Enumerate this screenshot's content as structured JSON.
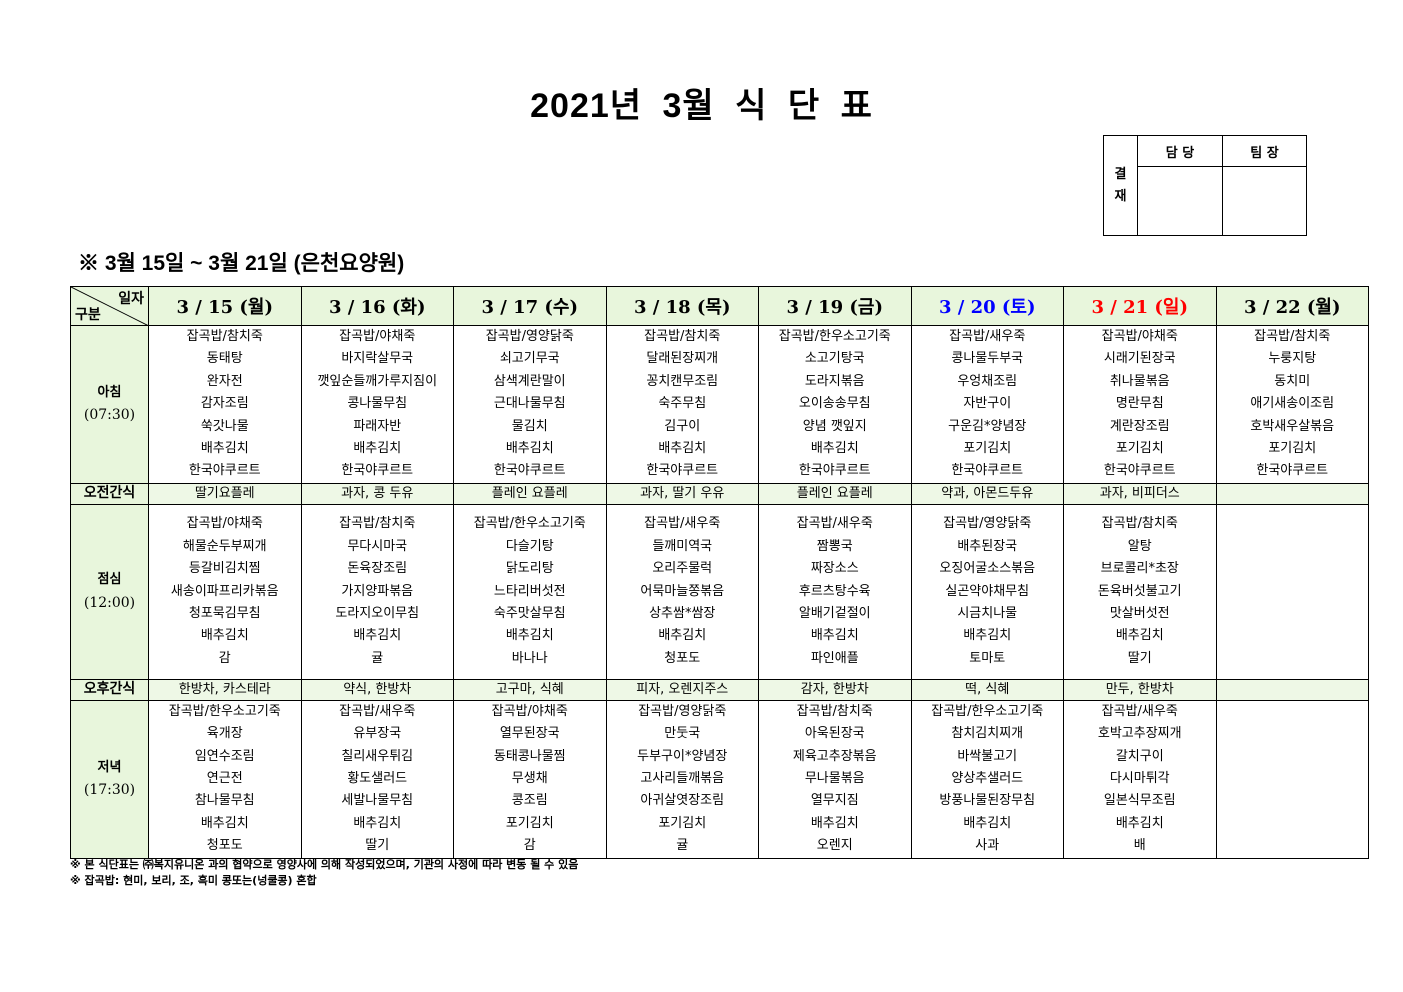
{
  "title": "2021년 3월 식 단 표",
  "approval": {
    "label": "결\n재",
    "col1": "담 당",
    "col2": "팀 장"
  },
  "subtitle": "※ 3월 15일 ~ 3월 21일 (은천요양원)",
  "corner": {
    "top": "일자",
    "bottom": "구분"
  },
  "row_labels": {
    "breakfast": "아침",
    "breakfast_time": "(07:30)",
    "morning_snack": "오전간식",
    "lunch": "점심",
    "lunch_time": "(12:00)",
    "afternoon_snack": "오후간식",
    "dinner": "저녁",
    "dinner_time": "(17:30)"
  },
  "colors": {
    "header_bg": "#e8f6dc",
    "saturday": "#0000ff",
    "sunday": "#ff0000"
  },
  "days": [
    {
      "date": "3 / 15 (월)",
      "color": "#000000",
      "breakfast": [
        "잡곡밥/참치죽",
        "동태탕",
        "완자전",
        "감자조림",
        "쑥갓나물",
        "배추김치",
        "한국야쿠르트"
      ],
      "morning_snack": "딸기요플레",
      "lunch": [
        "잡곡밥/야채죽",
        "해물순두부찌개",
        "등갈비김치찜",
        "새송이파프리카볶음",
        "청포묵김무침",
        "배추김치",
        "감"
      ],
      "afternoon_snack": "한방차, 카스테라",
      "dinner": [
        "잡곡밥/한우소고기죽",
        "육개장",
        "임연수조림",
        "연근전",
        "참나물무침",
        "배추김치",
        "청포도"
      ]
    },
    {
      "date": "3 / 16 (화)",
      "color": "#000000",
      "breakfast": [
        "잡곡밥/야채죽",
        "바지락살무국",
        "깻잎순들깨가루지짐이",
        "콩나물무침",
        "파래자반",
        "배추김치",
        "한국야쿠르트"
      ],
      "morning_snack": "과자, 콩 두유",
      "lunch": [
        "잡곡밥/참치죽",
        "무다시마국",
        "돈육장조림",
        "가지양파볶음",
        "도라지오이무침",
        "배추김치",
        "귤"
      ],
      "afternoon_snack": "약식, 한방차",
      "dinner": [
        "잡곡밥/새우죽",
        "유부장국",
        "칠리새우튀김",
        "황도샐러드",
        "세발나물무침",
        "배추김치",
        "딸기"
      ]
    },
    {
      "date": "3 / 17 (수)",
      "color": "#000000",
      "breakfast": [
        "잡곡밥/영양닭죽",
        "쇠고기무국",
        "삼색계란말이",
        "근대나물무침",
        "물김치",
        "배추김치",
        "한국야쿠르트"
      ],
      "morning_snack": "플레인 요플레",
      "lunch": [
        "잡곡밥/한우소고기죽",
        "다슬기탕",
        "닭도리탕",
        "느타리버섯전",
        "숙주맛살무침",
        "배추김치",
        "바나나"
      ],
      "afternoon_snack": "고구마, 식혜",
      "dinner": [
        "잡곡밥/야채죽",
        "열무된장국",
        "동태콩나물찜",
        "무생채",
        "콩조림",
        "포기김치",
        "감"
      ]
    },
    {
      "date": "3 / 18 (목)",
      "color": "#000000",
      "breakfast": [
        "잡곡밥/참치죽",
        "달래된장찌개",
        "꽁치캔무조림",
        "숙주무침",
        "김구이",
        "배추김치",
        "한국야쿠르트"
      ],
      "morning_snack": "과자, 딸기 우유",
      "lunch": [
        "잡곡밥/새우죽",
        "들깨미역국",
        "오리주물럭",
        "어묵마늘쫑볶음",
        "상추쌈*쌈장",
        "배추김치",
        "청포도"
      ],
      "afternoon_snack": "피자, 오렌지주스",
      "dinner": [
        "잡곡밥/영양닭죽",
        "만둣국",
        "두부구이*양념장",
        "고사리들깨볶음",
        "아귀살엿장조림",
        "포기김치",
        "귤"
      ]
    },
    {
      "date": "3 / 19 (금)",
      "color": "#000000",
      "breakfast": [
        "잡곡밥/한우소고기죽",
        "소고기탕국",
        "도라지볶음",
        "오이송송무침",
        "양념 깻잎지",
        "배추김치",
        "한국야쿠르트"
      ],
      "morning_snack": "플레인 요플레",
      "lunch": [
        "잡곡밥/새우죽",
        "짬뽕국",
        "짜장소스",
        "후르츠탕수육",
        "알배기겉절이",
        "배추김치",
        "파인애플"
      ],
      "afternoon_snack": "감자, 한방차",
      "dinner": [
        "잡곡밥/참치죽",
        "아욱된장국",
        "제육고추장볶음",
        "무나물볶음",
        "열무지짐",
        "배추김치",
        "오렌지"
      ]
    },
    {
      "date": "3 / 20 (토)",
      "color": "#0000ff",
      "breakfast": [
        "잡곡밥/새우죽",
        "콩나물두부국",
        "우엉채조림",
        "자반구이",
        "구운김*양념장",
        "포기김치",
        "한국야쿠르트"
      ],
      "morning_snack": "약과, 아몬드두유",
      "lunch": [
        "잡곡밥/영양닭죽",
        "배추된장국",
        "오징어굴소스볶음",
        "실곤약야채무침",
        "시금치나물",
        "배추김치",
        "토마토"
      ],
      "afternoon_snack": "떡, 식혜",
      "dinner": [
        "잡곡밥/한우소고기죽",
        "참치김치찌개",
        "바싹불고기",
        "양상추샐러드",
        "방풍나물된장무침",
        "배추김치",
        "사과"
      ]
    },
    {
      "date": "3 / 21 (일)",
      "color": "#ff0000",
      "breakfast": [
        "잡곡밥/야채죽",
        "시래기된장국",
        "취나물볶음",
        "명란무침",
        "계란장조림",
        "포기김치",
        "한국야쿠르트"
      ],
      "morning_snack": "과자, 비피더스",
      "lunch": [
        "잡곡밥/참치죽",
        "알탕",
        "브로콜리*초장",
        "돈육버섯불고기",
        "맛살버섯전",
        "배추김치",
        "딸기"
      ],
      "afternoon_snack": "만두, 한방차",
      "dinner": [
        "잡곡밥/새우죽",
        "호박고추장찌개",
        "갈치구이",
        "다시마튀각",
        "일본식무조림",
        "배추김치",
        "배"
      ]
    },
    {
      "date": "3 / 22 (월)",
      "color": "#000000",
      "breakfast": [
        "잡곡밥/참치죽",
        "누룽지탕",
        "동치미",
        "애기새송이조림",
        "호박새우살볶음",
        "포기김치",
        "한국야쿠르트"
      ],
      "morning_snack": "",
      "lunch": [],
      "afternoon_snack": "",
      "dinner": []
    }
  ],
  "notes": [
    "※ 본 식단표는 ㈜복지유니온 과의 협약으로 영양사에 의해 작성되었으며, 기관의 사정에 따라 변동 될 수 있음",
    "※ 잡곡밥: 현미, 보리, 조, 흑미 콩또는(넝쿨콩) 혼합"
  ]
}
